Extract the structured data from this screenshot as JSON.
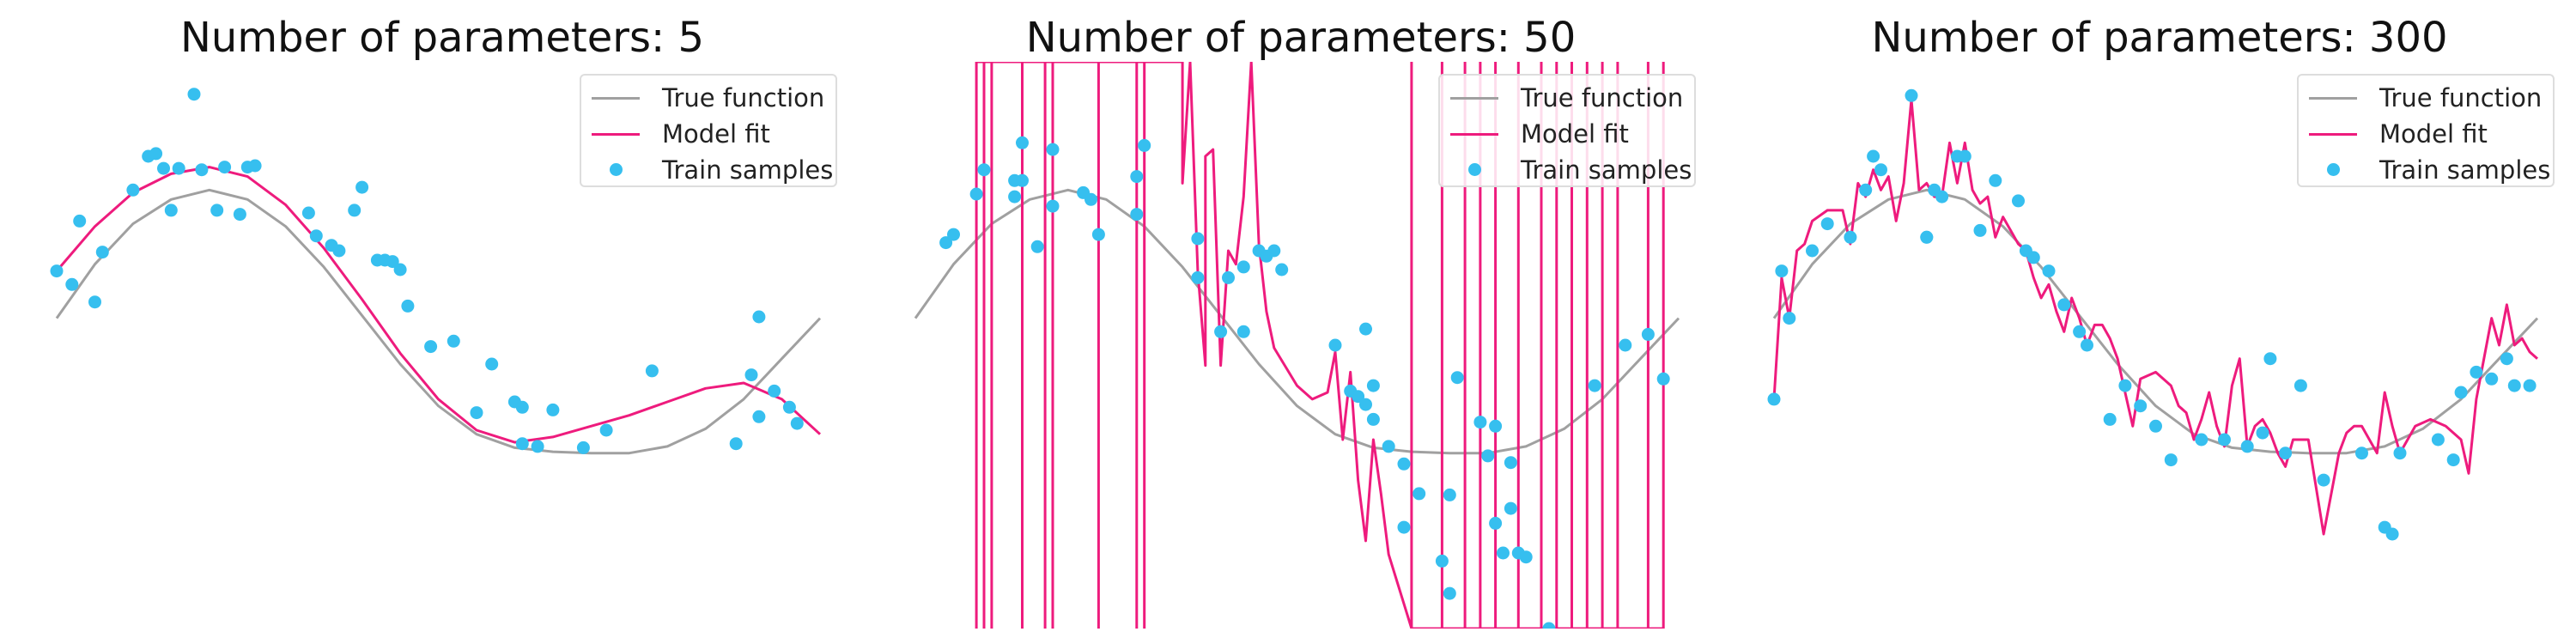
{
  "colors": {
    "true_function": "#a0a0a0",
    "model_fit": "#ee1b7d",
    "train_samples": "#36bfef"
  },
  "legend": {
    "true_label": "True function",
    "model_label": "Model fit",
    "samples_label": "Train samples"
  },
  "chart_data": [
    {
      "type": "line",
      "title": "Number of parameters: 5",
      "xlabel": "",
      "ylabel": "",
      "axes_visible": false,
      "legend_position": "top-right",
      "xlim": [
        0,
        1
      ],
      "ylim": [
        -2.3,
        1.9
      ],
      "true_function": {
        "x": [
          0,
          0.05,
          0.1,
          0.15,
          0.2,
          0.25,
          0.3,
          0.35,
          0.4,
          0.45,
          0.5,
          0.55,
          0.6,
          0.65,
          0.7,
          0.75,
          0.8,
          0.85,
          0.9,
          0.95,
          1
        ],
        "y": [
          0,
          0.4,
          0.7,
          0.88,
          0.95,
          0.88,
          0.68,
          0.38,
          0.02,
          -0.34,
          -0.65,
          -0.86,
          -0.96,
          -0.99,
          -1.0,
          -1.0,
          -0.95,
          -0.82,
          -0.6,
          -0.3,
          0
        ]
      },
      "model_fit": {
        "x": [
          0,
          0.05,
          0.1,
          0.15,
          0.2,
          0.25,
          0.3,
          0.35,
          0.4,
          0.45,
          0.5,
          0.55,
          0.6,
          0.65,
          0.7,
          0.75,
          0.8,
          0.85,
          0.9,
          0.95,
          1
        ],
        "y": [
          0.35,
          0.68,
          0.93,
          1.07,
          1.12,
          1.05,
          0.84,
          0.52,
          0.14,
          -0.26,
          -0.6,
          -0.83,
          -0.92,
          -0.88,
          -0.8,
          -0.72,
          -0.62,
          -0.52,
          -0.48,
          -0.6,
          -0.86
        ]
      },
      "train_samples": {
        "x": [
          0.0,
          0.02,
          0.03,
          0.05,
          0.06,
          0.1,
          0.12,
          0.13,
          0.14,
          0.15,
          0.16,
          0.18,
          0.19,
          0.21,
          0.22,
          0.24,
          0.25,
          0.26,
          0.33,
          0.34,
          0.36,
          0.37,
          0.39,
          0.4,
          0.42,
          0.43,
          0.44,
          0.45,
          0.46,
          0.49,
          0.52,
          0.55,
          0.57,
          0.6,
          0.61,
          0.61,
          0.63,
          0.65,
          0.69,
          0.72,
          0.78,
          0.89,
          0.91,
          0.92,
          0.92,
          0.94,
          0.96,
          0.97
        ],
        "y": [
          0.35,
          0.25,
          0.72,
          0.12,
          0.49,
          0.95,
          1.2,
          1.22,
          1.11,
          0.8,
          1.11,
          1.66,
          1.1,
          0.8,
          1.12,
          0.77,
          1.12,
          1.13,
          0.78,
          0.61,
          0.54,
          0.5,
          0.8,
          0.97,
          0.43,
          0.43,
          0.42,
          0.36,
          0.09,
          -0.21,
          -0.17,
          -0.7,
          -0.34,
          -0.62,
          -0.93,
          -0.66,
          -0.95,
          -0.68,
          -0.96,
          -0.83,
          -0.39,
          -0.93,
          -0.42,
          -0.73,
          0.01,
          -0.54,
          -0.66,
          -0.78
        ]
      }
    },
    {
      "type": "line",
      "title": "Number of parameters: 50",
      "xlabel": "",
      "ylabel": "",
      "axes_visible": false,
      "legend_position": "top-right",
      "xlim": [
        0,
        1
      ],
      "ylim": [
        -2.3,
        1.9
      ],
      "true_function": {
        "x": [
          0,
          0.05,
          0.1,
          0.15,
          0.2,
          0.25,
          0.3,
          0.35,
          0.4,
          0.45,
          0.5,
          0.55,
          0.6,
          0.65,
          0.7,
          0.75,
          0.8,
          0.85,
          0.9,
          0.95,
          1
        ],
        "y": [
          0,
          0.4,
          0.7,
          0.88,
          0.95,
          0.88,
          0.68,
          0.38,
          0.02,
          -0.34,
          -0.65,
          -0.86,
          -0.96,
          -0.99,
          -1.0,
          -1.0,
          -0.95,
          -0.82,
          -0.6,
          -0.3,
          0
        ]
      },
      "model_fit": {
        "x": [
          0.08,
          0.08,
          0.08,
          0.09,
          0.09,
          0.09,
          0.1,
          0.1,
          0.1,
          0.14,
          0.14,
          0.14,
          0.17,
          0.17,
          0.17,
          0.17,
          0.17,
          0.17,
          0.18,
          0.18,
          0.18,
          0.24,
          0.24,
          0.24,
          0.29,
          0.29,
          0.29,
          0.3,
          0.3,
          0.3,
          0.35,
          0.35,
          0.36,
          0.37,
          0.38,
          0.38,
          0.39,
          0.4,
          0.41,
          0.42,
          0.43,
          0.44,
          0.45,
          0.46,
          0.47,
          0.5,
          0.52,
          0.54,
          0.55,
          0.56,
          0.57,
          0.58,
          0.59,
          0.6,
          0.61,
          0.62,
          0.65,
          0.65,
          0.65,
          0.69,
          0.69,
          0.69,
          0.72,
          0.72,
          0.72,
          0.74,
          0.74,
          0.74,
          0.76,
          0.76,
          0.76,
          0.79,
          0.79,
          0.79,
          0.82,
          0.82,
          0.82,
          0.84,
          0.84,
          0.84,
          0.86,
          0.86,
          0.86,
          0.88,
          0.88,
          0.88,
          0.9,
          0.9,
          0.9,
          0.92,
          0.92,
          0.92,
          0.96,
          0.96,
          0.96,
          0.98,
          0.98,
          0.98
        ],
        "y": [
          1.9,
          -2.3,
          1.9,
          1.9,
          -2.3,
          1.9,
          1.9,
          -2.3,
          1.9,
          1.9,
          -2.3,
          1.9,
          1.9,
          -2.3,
          1.9,
          1.9,
          -2.3,
          1.9,
          1.9,
          -2.3,
          1.9,
          1.9,
          -2.3,
          1.9,
          1.9,
          -2.3,
          1.9,
          1.9,
          -2.3,
          1.9,
          1.9,
          1.0,
          1.9,
          0.35,
          -0.35,
          1.2,
          1.25,
          -0.35,
          0.5,
          0.4,
          0.9,
          1.9,
          0.55,
          0.05,
          -0.22,
          -0.5,
          -0.6,
          -0.55,
          -0.25,
          -0.9,
          -0.4,
          -1.2,
          -1.65,
          -0.9,
          -1.3,
          -1.75,
          -2.3,
          1.9,
          -2.3,
          -2.3,
          1.9,
          -2.3,
          -2.3,
          1.9,
          -2.3,
          -2.3,
          1.9,
          -2.3,
          -2.3,
          1.9,
          -2.3,
          -2.3,
          1.9,
          -2.3,
          -2.3,
          1.9,
          -2.3,
          -2.3,
          1.9,
          -2.3,
          -2.3,
          1.9,
          -2.3,
          -2.3,
          1.9,
          -2.3,
          -2.3,
          1.9,
          -2.3,
          -2.3,
          1.9,
          -2.3,
          -2.3,
          1.9,
          -2.3,
          -2.3,
          1.9,
          -2.3
        ]
      },
      "train_samples": {
        "x": [
          0.04,
          0.05,
          0.08,
          0.09,
          0.13,
          0.13,
          0.14,
          0.14,
          0.16,
          0.18,
          0.18,
          0.22,
          0.23,
          0.24,
          0.29,
          0.29,
          0.3,
          0.37,
          0.37,
          0.4,
          0.41,
          0.43,
          0.43,
          0.45,
          0.46,
          0.47,
          0.48,
          0.55,
          0.57,
          0.58,
          0.59,
          0.59,
          0.6,
          0.6,
          0.62,
          0.64,
          0.64,
          0.66,
          0.69,
          0.7,
          0.7,
          0.71,
          0.74,
          0.75,
          0.76,
          0.76,
          0.77,
          0.78,
          0.78,
          0.79,
          0.8,
          0.83,
          0.89,
          0.93,
          0.96,
          0.98
        ],
        "y": [
          0.56,
          0.62,
          0.92,
          1.1,
          1.02,
          0.9,
          1.02,
          1.3,
          0.53,
          0.83,
          1.25,
          0.93,
          0.88,
          0.62,
          0.77,
          1.05,
          1.28,
          0.59,
          0.3,
          -0.1,
          0.3,
          0.38,
          -0.1,
          0.5,
          0.46,
          0.5,
          0.36,
          -0.2,
          -0.54,
          -0.58,
          -0.08,
          -0.64,
          -0.75,
          -0.5,
          -0.95,
          -1.08,
          -1.55,
          -1.3,
          -1.8,
          -1.31,
          -2.04,
          -0.44,
          -0.77,
          -1.02,
          -1.52,
          -0.8,
          -1.74,
          -1.41,
          -1.07,
          -1.74,
          -1.77,
          -2.3,
          -0.5,
          -0.2,
          -0.12,
          -0.45
        ]
      }
    },
    {
      "type": "line",
      "title": "Number of parameters: 300",
      "xlabel": "",
      "ylabel": "",
      "axes_visible": false,
      "legend_position": "top-right",
      "xlim": [
        0,
        1
      ],
      "ylim": [
        -2.3,
        1.9
      ],
      "true_function": {
        "x": [
          0,
          0.05,
          0.1,
          0.15,
          0.2,
          0.25,
          0.3,
          0.35,
          0.4,
          0.45,
          0.5,
          0.55,
          0.6,
          0.65,
          0.7,
          0.75,
          0.8,
          0.85,
          0.9,
          0.95,
          1
        ],
        "y": [
          0,
          0.4,
          0.7,
          0.88,
          0.95,
          0.88,
          0.68,
          0.38,
          0.02,
          -0.34,
          -0.65,
          -0.86,
          -0.96,
          -0.99,
          -1.0,
          -1.0,
          -0.95,
          -0.82,
          -0.6,
          -0.3,
          0
        ]
      },
      "model_fit": {
        "x": [
          0.0,
          0.01,
          0.02,
          0.03,
          0.04,
          0.05,
          0.07,
          0.09,
          0.1,
          0.11,
          0.12,
          0.13,
          0.14,
          0.15,
          0.16,
          0.17,
          0.18,
          0.19,
          0.2,
          0.21,
          0.22,
          0.23,
          0.24,
          0.25,
          0.26,
          0.27,
          0.28,
          0.29,
          0.3,
          0.31,
          0.32,
          0.33,
          0.34,
          0.35,
          0.36,
          0.37,
          0.38,
          0.39,
          0.4,
          0.41,
          0.42,
          0.43,
          0.44,
          0.45,
          0.46,
          0.47,
          0.48,
          0.5,
          0.52,
          0.53,
          0.54,
          0.55,
          0.56,
          0.57,
          0.58,
          0.59,
          0.6,
          0.61,
          0.62,
          0.63,
          0.64,
          0.65,
          0.66,
          0.67,
          0.68,
          0.7,
          0.72,
          0.74,
          0.75,
          0.76,
          0.77,
          0.78,
          0.79,
          0.8,
          0.81,
          0.82,
          0.83,
          0.84,
          0.86,
          0.88,
          0.9,
          0.91,
          0.92,
          0.93,
          0.94,
          0.95,
          0.96,
          0.97,
          0.98,
          0.99,
          1.0
        ],
        "y": [
          -0.6,
          0.3,
          0.0,
          0.5,
          0.55,
          0.72,
          0.8,
          0.8,
          0.55,
          1.0,
          0.9,
          1.1,
          0.95,
          1.05,
          0.72,
          1.0,
          1.62,
          0.95,
          1.0,
          0.9,
          0.9,
          1.3,
          1.0,
          1.3,
          0.95,
          0.85,
          0.9,
          0.6,
          0.75,
          0.65,
          0.55,
          0.5,
          0.3,
          0.15,
          0.25,
          0.05,
          -0.1,
          0.15,
          0.0,
          -0.2,
          -0.05,
          -0.05,
          -0.15,
          -0.3,
          -0.55,
          -0.8,
          -0.45,
          -0.4,
          -0.5,
          -0.65,
          -0.7,
          -0.9,
          -0.75,
          -0.55,
          -0.8,
          -0.95,
          -0.5,
          -0.3,
          -0.95,
          -0.8,
          -0.75,
          -0.85,
          -1.0,
          -1.1,
          -0.9,
          -0.9,
          -1.6,
          -1.0,
          -0.85,
          -0.8,
          -0.8,
          -0.9,
          -1.0,
          -0.55,
          -0.8,
          -1.0,
          -0.9,
          -0.8,
          -0.75,
          -0.8,
          -0.9,
          -1.15,
          -0.6,
          -0.3,
          0.0,
          -0.2,
          0.1,
          -0.2,
          -0.15,
          -0.25,
          -0.3
        ]
      },
      "train_samples": {
        "x": [
          0.0,
          0.01,
          0.02,
          0.05,
          0.07,
          0.1,
          0.12,
          0.13,
          0.14,
          0.18,
          0.2,
          0.21,
          0.2,
          0.22,
          0.24,
          0.25,
          0.27,
          0.29,
          0.32,
          0.33,
          0.34,
          0.36,
          0.38,
          0.4,
          0.41,
          0.44,
          0.46,
          0.48,
          0.5,
          0.52,
          0.56,
          0.59,
          0.62,
          0.64,
          0.65,
          0.67,
          0.69,
          0.72,
          0.77,
          0.8,
          0.81,
          0.82,
          0.87,
          0.89,
          0.9,
          0.92,
          0.94,
          0.96,
          0.97,
          0.99
        ],
        "y": [
          -0.6,
          0.35,
          0.0,
          0.5,
          0.7,
          0.6,
          0.95,
          1.2,
          1.1,
          1.65,
          0.6,
          0.95,
          0.6,
          0.9,
          1.2,
          1.2,
          0.65,
          1.02,
          0.87,
          0.5,
          0.45,
          0.35,
          0.1,
          -0.1,
          -0.2,
          -0.75,
          -0.5,
          -0.65,
          -0.8,
          -1.05,
          -0.9,
          -0.9,
          -0.95,
          -0.85,
          -0.3,
          -1.0,
          -0.5,
          -1.2,
          -1.0,
          -1.55,
          -1.6,
          -1.0,
          -0.9,
          -1.05,
          -0.55,
          -0.4,
          -0.45,
          -0.3,
          -0.5,
          -0.5
        ]
      }
    }
  ]
}
